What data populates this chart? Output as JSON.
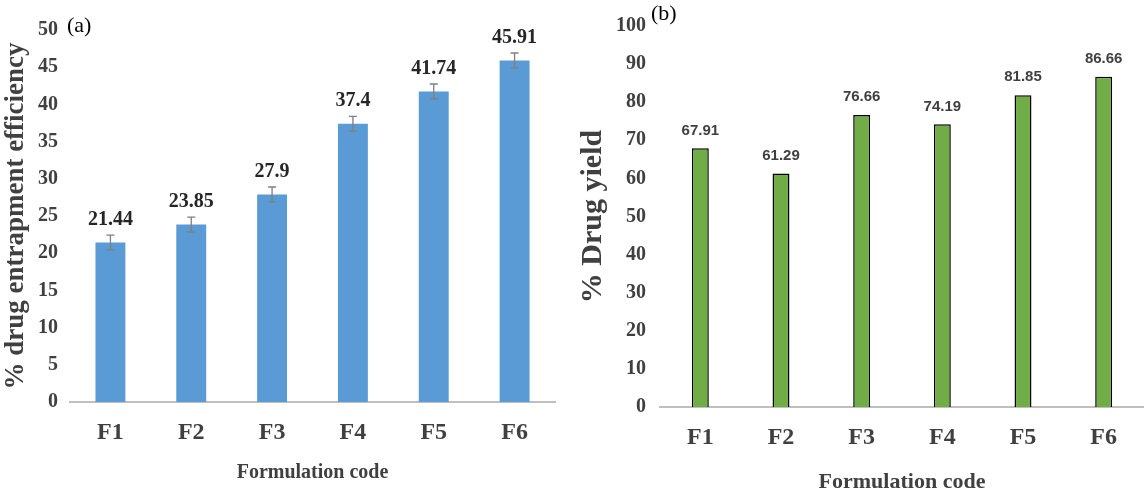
{
  "chart_data": [
    {
      "type": "bar",
      "xlabel": "Formulation code",
      "ylabel": "% drug entrapment efficiency",
      "annotations": [
        "(a)"
      ],
      "categories": [
        "F1",
        "F2",
        "F3",
        "F4",
        "F5",
        "F6"
      ],
      "values": [
        21.44,
        23.85,
        27.9,
        37.4,
        41.74,
        45.91
      ],
      "errors": [
        1,
        1,
        1,
        1,
        1,
        1
      ],
      "color": "#5b9bd5",
      "ylim": [
        0,
        50
      ],
      "yticks": [
        0,
        5,
        10,
        15,
        20,
        25,
        30,
        35,
        40,
        45,
        50
      ],
      "grid": false,
      "data_labels": true
    },
    {
      "type": "bar",
      "xlabel": "Formulation code",
      "ylabel": "% Drug yield",
      "annotations": [
        "(b)"
      ],
      "categories": [
        "F1",
        "F2",
        "F3",
        "F4",
        "F5",
        "F6"
      ],
      "values": [
        67.91,
        61.29,
        76.66,
        74.19,
        81.85,
        86.66
      ],
      "color": "#70ad47",
      "ylim": [
        0,
        100
      ],
      "yticks": [
        0,
        10,
        20,
        30,
        40,
        50,
        60,
        70,
        80,
        90,
        100
      ],
      "grid": false,
      "data_labels": true
    }
  ]
}
